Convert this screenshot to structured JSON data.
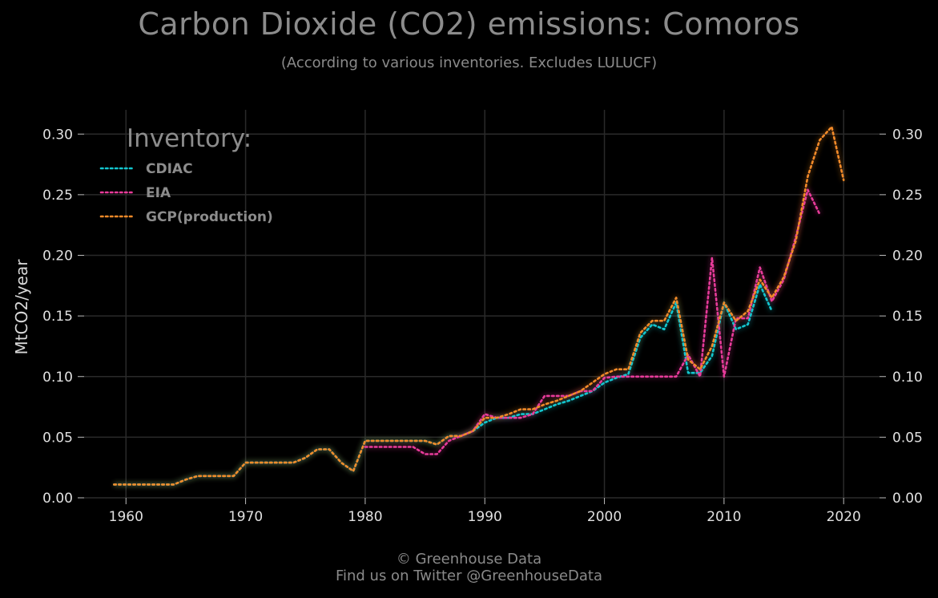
{
  "title": "Carbon Dioxide (CO2) emissions: Comoros",
  "subtitle": "(According to various inventories. Excludes LULUCF)",
  "footer": {
    "line1": "© Greenhouse Data",
    "line2": "Find us on Twitter @GreenhouseData"
  },
  "chart_data": {
    "type": "line",
    "title": "Carbon Dioxide (CO2) emissions: Comoros",
    "subtitle": "(According to various inventories. Excludes LULUCF)",
    "xlabel": "",
    "ylabel": "MtCO2/year",
    "xlim": [
      1956.5,
      2023
    ],
    "ylim": [
      0,
      0.32
    ],
    "xticks": [
      1960,
      1970,
      1980,
      1990,
      2000,
      2010,
      2020
    ],
    "yticks": [
      0.0,
      0.05,
      0.1,
      0.15,
      0.2,
      0.25,
      0.3
    ],
    "ytick_labels": [
      "0.00",
      "0.05",
      "0.10",
      "0.15",
      "0.20",
      "0.25",
      "0.30"
    ],
    "grid": true,
    "legend": {
      "title": "Inventory:",
      "position": "top-left"
    },
    "background": "#000000",
    "grid_color": "#2a2a2a",
    "series": [
      {
        "name": "CDIAC",
        "color": "#13c6cf",
        "x": [
          1959,
          1960,
          1961,
          1962,
          1963,
          1964,
          1965,
          1966,
          1967,
          1968,
          1969,
          1970,
          1971,
          1972,
          1973,
          1974,
          1975,
          1976,
          1977,
          1978,
          1979,
          1980,
          1981,
          1982,
          1983,
          1984,
          1985,
          1986,
          1987,
          1988,
          1989,
          1990,
          1991,
          1992,
          1993,
          1994,
          1995,
          1996,
          1997,
          1998,
          1999,
          2000,
          2001,
          2002,
          2003,
          2004,
          2005,
          2006,
          2007,
          2008,
          2009,
          2010,
          2011,
          2012,
          2013,
          2014
        ],
        "y": [
          0.011,
          0.011,
          0.011,
          0.011,
          0.011,
          0.011,
          0.015,
          0.018,
          0.018,
          0.018,
          0.018,
          0.029,
          0.029,
          0.029,
          0.029,
          0.029,
          0.033,
          0.04,
          0.04,
          0.029,
          0.022,
          0.047,
          0.047,
          0.047,
          0.047,
          0.047,
          0.047,
          0.044,
          0.051,
          0.051,
          0.055,
          0.062,
          0.066,
          0.066,
          0.069,
          0.069,
          0.073,
          0.077,
          0.08,
          0.084,
          0.088,
          0.095,
          0.099,
          0.102,
          0.132,
          0.143,
          0.139,
          0.161,
          0.103,
          0.103,
          0.117,
          0.161,
          0.139,
          0.143,
          0.176,
          0.154
        ]
      },
      {
        "name": "EIA",
        "color": "#e83b9a",
        "x": [
          1980,
          1981,
          1982,
          1983,
          1984,
          1985,
          1986,
          1987,
          1988,
          1989,
          1990,
          1991,
          1992,
          1993,
          1994,
          1995,
          1996,
          1997,
          1998,
          1999,
          2000,
          2001,
          2002,
          2003,
          2004,
          2005,
          2006,
          2007,
          2008,
          2009,
          2010,
          2011,
          2012,
          2013,
          2014,
          2015,
          2016,
          2017,
          2018
        ],
        "y": [
          0.042,
          0.042,
          0.042,
          0.042,
          0.042,
          0.036,
          0.036,
          0.047,
          0.051,
          0.055,
          0.069,
          0.066,
          0.066,
          0.066,
          0.069,
          0.084,
          0.084,
          0.084,
          0.088,
          0.088,
          0.099,
          0.1,
          0.1,
          0.1,
          0.1,
          0.1,
          0.1,
          0.118,
          0.1,
          0.198,
          0.1,
          0.148,
          0.148,
          0.19,
          0.162,
          0.18,
          0.215,
          0.254,
          0.234
        ]
      },
      {
        "name": "GCP(production)",
        "color": "#f28a28",
        "x": [
          1959,
          1960,
          1961,
          1962,
          1963,
          1964,
          1965,
          1966,
          1967,
          1968,
          1969,
          1970,
          1971,
          1972,
          1973,
          1974,
          1975,
          1976,
          1977,
          1978,
          1979,
          1980,
          1981,
          1982,
          1983,
          1984,
          1985,
          1986,
          1987,
          1988,
          1989,
          1990,
          1991,
          1992,
          1993,
          1994,
          1995,
          1996,
          1997,
          1998,
          1999,
          2000,
          2001,
          2002,
          2003,
          2004,
          2005,
          2006,
          2007,
          2008,
          2009,
          2010,
          2011,
          2012,
          2013,
          2014,
          2015,
          2016,
          2017,
          2018,
          2019,
          2020
        ],
        "y": [
          0.011,
          0.011,
          0.011,
          0.011,
          0.011,
          0.011,
          0.015,
          0.018,
          0.018,
          0.018,
          0.018,
          0.029,
          0.029,
          0.029,
          0.029,
          0.029,
          0.033,
          0.04,
          0.04,
          0.029,
          0.022,
          0.047,
          0.047,
          0.047,
          0.047,
          0.047,
          0.047,
          0.044,
          0.051,
          0.051,
          0.055,
          0.066,
          0.066,
          0.069,
          0.073,
          0.073,
          0.077,
          0.08,
          0.084,
          0.088,
          0.095,
          0.102,
          0.106,
          0.106,
          0.136,
          0.146,
          0.146,
          0.165,
          0.114,
          0.106,
          0.125,
          0.161,
          0.146,
          0.154,
          0.18,
          0.165,
          0.182,
          0.212,
          0.265,
          0.295,
          0.306,
          0.262
        ]
      }
    ]
  }
}
